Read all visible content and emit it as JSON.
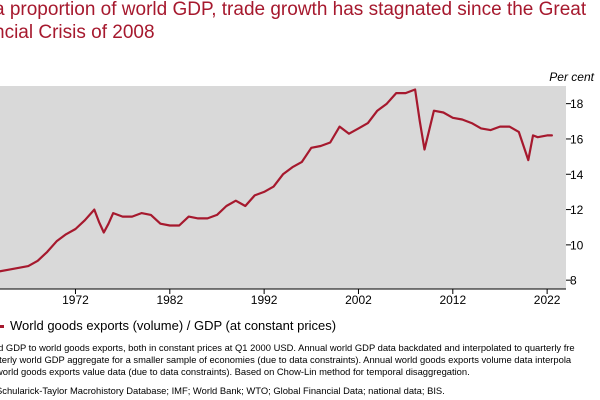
{
  "title_lines": [
    "a proportion of world GDP, trade growth has stagnated since the Great",
    "ncial Crisis of 2008"
  ],
  "legend": [
    "World goods exports (volume) / GDP (at constant prices)"
  ],
  "notes_lines": [
    "ld GDP to world goods exports, both in constant prices at Q1 2000 USD. Annual world GDP data backdated and interpolated to quarterly fre",
    "rterly world GDP aggregate for a smaller sample of economies (due to data constraints). Annual world goods exports volume data interpola",
    " world goods exports value data (due to data constraints). Based on Chow-Lin method for temporal disaggregation."
  ],
  "source": "Schularick-Taylor Macrohistory Database; IMF; World Bank; WTO; Global Financial Data; national data; BIS.",
  "colors": {
    "line": "#a6192e",
    "plot_bg": "#d9d9d9",
    "title": "#a6192e"
  },
  "chart_data": {
    "type": "line",
    "title": "",
    "xlabel": "",
    "ylabel": "Per cent",
    "xlim": [
      1964,
      2024
    ],
    "ylim": [
      7.5,
      19
    ],
    "x_ticks": [
      1972,
      1982,
      1992,
      2002,
      2012,
      2022
    ],
    "x_tick_labels": [
      "1972",
      "1982",
      "1992",
      "2002",
      "2012",
      "2022"
    ],
    "y_ticks": [
      8,
      10,
      12,
      14,
      16,
      18
    ],
    "y_tick_labels": [
      "8",
      "10",
      "12",
      "14",
      "16",
      "18"
    ],
    "grid": false,
    "legend_position": "bottom",
    "series": [
      {
        "name": "World goods exports (volume) / GDP (at constant prices)",
        "x": [
          1964,
          1965,
          1966,
          1967,
          1968,
          1969,
          1970,
          1971,
          1972,
          1973,
          1974,
          1974.5,
          1975,
          1975.5,
          1976,
          1977,
          1978,
          1979,
          1980,
          1981,
          1982,
          1983,
          1984,
          1985,
          1986,
          1987,
          1988,
          1989,
          1990,
          1991,
          1992,
          1993,
          1994,
          1995,
          1996,
          1997,
          1998,
          1999,
          2000,
          2001,
          2002,
          2003,
          2004,
          2005,
          2006,
          2007,
          2008,
          2008.5,
          2009,
          2009.5,
          2010,
          2011,
          2012,
          2013,
          2014,
          2015,
          2016,
          2017,
          2018,
          2019,
          2020,
          2020.5,
          2021,
          2022,
          2022.5
        ],
        "values": [
          8.5,
          8.6,
          8.7,
          8.8,
          9.1,
          9.6,
          10.2,
          10.6,
          10.9,
          11.4,
          12.0,
          11.3,
          10.7,
          11.2,
          11.8,
          11.6,
          11.6,
          11.8,
          11.7,
          11.2,
          11.1,
          11.1,
          11.6,
          11.5,
          11.5,
          11.7,
          12.2,
          12.5,
          12.2,
          12.8,
          13.0,
          13.3,
          14.0,
          14.4,
          14.7,
          15.5,
          15.6,
          15.8,
          16.7,
          16.3,
          16.6,
          16.9,
          17.6,
          18.0,
          18.6,
          18.6,
          18.8,
          17.0,
          15.4,
          16.5,
          17.6,
          17.5,
          17.2,
          17.1,
          16.9,
          16.6,
          16.5,
          16.7,
          16.7,
          16.4,
          14.8,
          16.2,
          16.1,
          16.2,
          16.2
        ]
      }
    ]
  }
}
